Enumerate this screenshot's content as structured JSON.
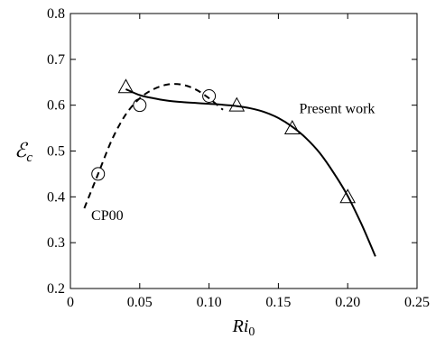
{
  "chart_data": {
    "type": "line",
    "xlabel": "Ri",
    "xlabel_sub": "0",
    "ylabel": "ℰ",
    "ylabel_sub": "c",
    "xlim": [
      0,
      0.25
    ],
    "ylim": [
      0.2,
      0.8
    ],
    "xticks": [
      0,
      0.05,
      0.1,
      0.15,
      0.2,
      0.25
    ],
    "xtick_labels": [
      "0",
      "0.05",
      "0.10",
      "0.15",
      "0.20",
      "0.25"
    ],
    "yticks": [
      0.2,
      0.3,
      0.4,
      0.5,
      0.6,
      0.7,
      0.8
    ],
    "ytick_labels": [
      "0.2",
      "0.3",
      "0.4",
      "0.5",
      "0.6",
      "0.7",
      "0.8"
    ],
    "grid": false,
    "series": [
      {
        "name": "Present work",
        "style": "solid",
        "marker": "triangle",
        "curve_x": [
          0.04,
          0.05,
          0.06,
          0.07,
          0.08,
          0.09,
          0.1,
          0.11,
          0.12,
          0.13,
          0.14,
          0.15,
          0.16,
          0.17,
          0.18,
          0.19,
          0.2,
          0.21,
          0.22
        ],
        "curve_y": [
          0.635,
          0.622,
          0.615,
          0.61,
          0.607,
          0.605,
          0.603,
          0.601,
          0.598,
          0.593,
          0.585,
          0.572,
          0.553,
          0.528,
          0.495,
          0.452,
          0.402,
          0.34,
          0.27
        ],
        "points_x": [
          0.04,
          0.12,
          0.16,
          0.2
        ],
        "points_y": [
          0.64,
          0.6,
          0.55,
          0.4
        ]
      },
      {
        "name": "CP00",
        "style": "dashed",
        "marker": "circle",
        "curve_x": [
          0.01,
          0.02,
          0.03,
          0.04,
          0.05,
          0.06,
          0.07,
          0.08,
          0.09,
          0.1,
          0.11
        ],
        "curve_y": [
          0.375,
          0.45,
          0.525,
          0.58,
          0.615,
          0.635,
          0.645,
          0.645,
          0.635,
          0.615,
          0.59
        ],
        "points_x": [
          0.02,
          0.05,
          0.1
        ],
        "points_y": [
          0.45,
          0.6,
          0.62
        ]
      }
    ],
    "annotations": [
      {
        "text": "Present work",
        "x": 0.165,
        "y": 0.583
      },
      {
        "text": "CP00",
        "x": 0.015,
        "y": 0.35
      }
    ]
  }
}
